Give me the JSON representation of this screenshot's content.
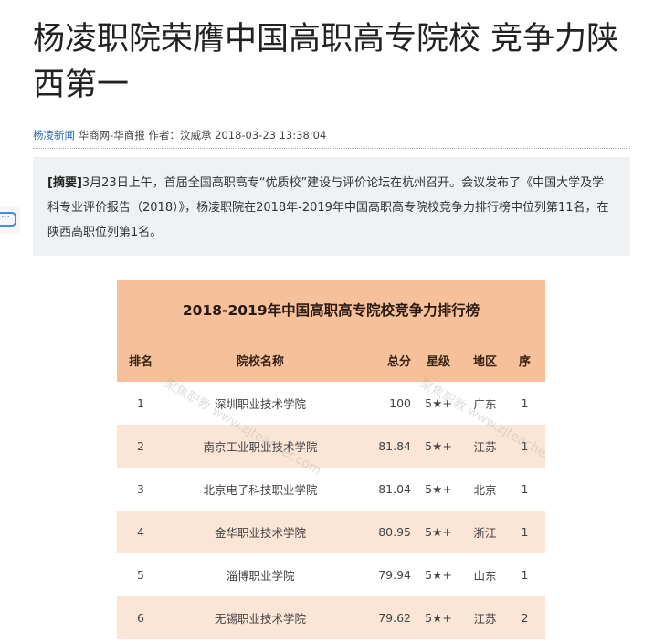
{
  "article": {
    "title": "杨凌职院荣膺中国高职高专院校 竞争力陕西第一",
    "meta": {
      "source_link": "杨凌新闻",
      "publisher": "华商网-华商报",
      "author": "作者：汶威承",
      "datetime": "2018-03-23 13:38:04"
    },
    "summary": {
      "label": "[摘要]",
      "text": "3月23日上午，首届全国高职高专“优质校”建设与评价论坛在杭州召开。会议发布了《中国大学及学科专业评价报告（2018）》，杨凌职院在2018年-2019年中国高职高专院校竞争力排行榜中位列第11名，在陕西高职位列第1名。"
    },
    "chat_icon": "comment-dots-icon"
  },
  "table": {
    "title": "2018-2019年中国高职高专院校竞争力排行榜",
    "headers": [
      "排名",
      "院校名称",
      "总分",
      "星级",
      "地区",
      "序"
    ],
    "rows": [
      [
        "1",
        "深圳职业技术学院",
        "100",
        "5★+",
        "广东",
        "1"
      ],
      [
        "2",
        "南京工业职业技术学院",
        "81.84",
        "5★+",
        "江苏",
        "1"
      ],
      [
        "3",
        "北京电子科技职业学院",
        "81.04",
        "5★+",
        "北京",
        "1"
      ],
      [
        "4",
        "金华职业技术学院",
        "80.95",
        "5★+",
        "浙江",
        "1"
      ],
      [
        "5",
        "淄博职业学院",
        "79.94",
        "5★+",
        "山东",
        "1"
      ],
      [
        "6",
        "无锡职业技术学院",
        "79.62",
        "5★+",
        "江苏",
        "2"
      ]
    ],
    "watermark": "聚焦职教 www.zjteacher.com",
    "colors": {
      "header": "#f5c09a",
      "alt_row": "#fbe5d6"
    }
  }
}
